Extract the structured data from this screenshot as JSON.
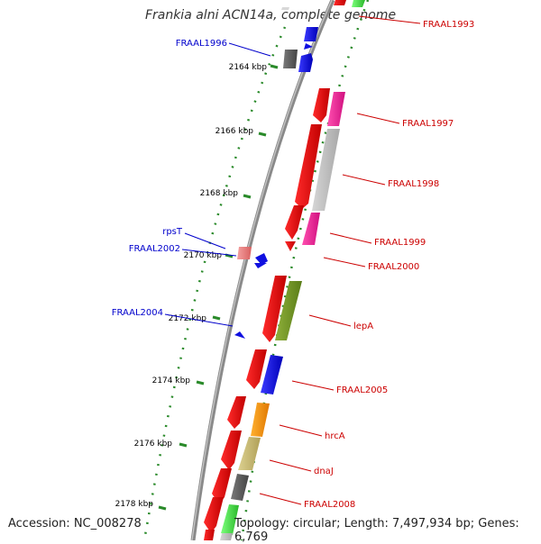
{
  "title": "Frankia alni ACN14a, complete genome",
  "accession": "Accession: NC_008278",
  "topology": "Topology: circular; Length: 7,497,934 bp; Genes: 6,769",
  "colors": {
    "backbone": "#7a7a7a",
    "tick": "#2a8a2a",
    "label_forward": "#0000cc",
    "label_reverse": "#cc0000"
  },
  "ticks": [
    "2164 kbp",
    "2166 kbp",
    "2168 kbp",
    "2170 kbp",
    "2172 kbp",
    "2174 kbp",
    "2176 kbp",
    "2178 kbp"
  ],
  "labels": [
    {
      "text": "FRAAL1993",
      "strand": "reverse"
    },
    {
      "text": "FRAAL1996",
      "strand": "forward"
    },
    {
      "text": "FRAAL1997",
      "strand": "reverse"
    },
    {
      "text": "FRAAL1998",
      "strand": "reverse"
    },
    {
      "text": "rpsT",
      "strand": "forward"
    },
    {
      "text": "FRAAL2002",
      "strand": "forward"
    },
    {
      "text": "FRAAL1999",
      "strand": "reverse"
    },
    {
      "text": "FRAAL2000",
      "strand": "reverse"
    },
    {
      "text": "FRAAL2004",
      "strand": "forward"
    },
    {
      "text": "lepA",
      "strand": "reverse"
    },
    {
      "text": "FRAAL2005",
      "strand": "reverse"
    },
    {
      "text": "hrcA",
      "strand": "reverse"
    },
    {
      "text": "dnaJ",
      "strand": "reverse"
    },
    {
      "text": "FRAAL2008",
      "strand": "reverse"
    }
  ]
}
